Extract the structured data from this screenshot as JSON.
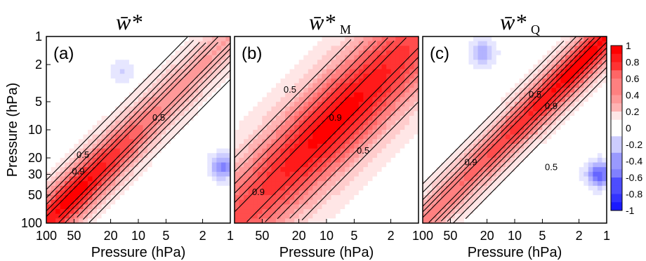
{
  "chart_data": [
    {
      "type": "heatmap",
      "panel_label": "(a)",
      "title": "w̄*",
      "title_sub": "",
      "xlabel": "Pressure (hPa)",
      "ylabel": "Pressure (hPa)",
      "x_ticks": [
        "100",
        "50",
        "20",
        "10",
        "5",
        "2",
        "1"
      ],
      "x_tick_values": [
        100,
        50,
        20,
        10,
        5,
        2,
        1
      ],
      "y_ticks": [
        "1",
        "2",
        "5",
        "10",
        "20",
        "30",
        "50",
        "100"
      ],
      "y_tick_values": [
        1,
        2,
        5,
        10,
        20,
        30,
        50,
        100
      ],
      "xlim": [
        100,
        1
      ],
      "ylim": [
        1,
        100
      ],
      "log_axes": true,
      "peak_center": [
        50,
        50
      ],
      "peak_value": 1.0,
      "contour_labels": [
        {
          "text": "0.5",
          "x": 40,
          "y": 20
        },
        {
          "text": "0.9",
          "x": 45,
          "y": 30
        },
        {
          "text": "0.5",
          "x": 6,
          "y": 8
        }
      ],
      "negative_regions": [
        {
          "x": 15,
          "y": 2.4,
          "value": -0.1
        },
        {
          "x": 1.2,
          "y": 25,
          "value": -0.3
        }
      ]
    },
    {
      "type": "heatmap",
      "panel_label": "(b)",
      "title": "w̄*",
      "title_sub": "M",
      "xlabel": "Pressure (hPa)",
      "ylabel": "",
      "x_ticks": [
        "50",
        "20",
        "10",
        "5",
        "2"
      ],
      "x_tick_values": [
        50,
        20,
        10,
        5,
        2
      ],
      "xlim": [
        100,
        1
      ],
      "ylim": [
        1,
        100
      ],
      "log_axes": true,
      "peak_center": [
        8,
        8
      ],
      "peak_value": 1.0,
      "contour_labels": [
        {
          "text": "0.5",
          "x": 25,
          "y": 4
        },
        {
          "text": "0.9",
          "x": 8,
          "y": 8
        },
        {
          "text": "0.5",
          "x": 4,
          "y": 18
        },
        {
          "text": "0.9",
          "x": 55,
          "y": 50
        }
      ],
      "negative_regions": []
    },
    {
      "type": "heatmap",
      "panel_label": "(c)",
      "title": "w̄*",
      "title_sub": "Q",
      "xlabel": "Pressure (hPa)",
      "ylabel": "",
      "x_ticks": [
        "100",
        "50",
        "20",
        "10",
        "5",
        "2",
        "1"
      ],
      "x_tick_values": [
        100,
        50,
        20,
        10,
        5,
        2,
        1
      ],
      "xlim": [
        100,
        1
      ],
      "ylim": [
        1,
        100
      ],
      "log_axes": true,
      "peak_center": [
        2,
        2
      ],
      "peak_value": 1.0,
      "contour_labels": [
        {
          "text": "0.5",
          "x": 6,
          "y": 4.5
        },
        {
          "text": "0.9",
          "x": 4,
          "y": 6
        },
        {
          "text": "0.9",
          "x": 30,
          "y": 24
        },
        {
          "text": "0.5",
          "x": 4,
          "y": 27
        }
      ],
      "negative_regions": [
        {
          "x": 22,
          "y": 1.5,
          "value": -0.2
        },
        {
          "x": 1.2,
          "y": 30,
          "value": -0.4
        }
      ]
    }
  ],
  "colorbar": {
    "ticks": [
      "1",
      "0.8",
      "0.6",
      "0.4",
      "0.2",
      "0",
      "-0.2",
      "-0.4",
      "-0.6",
      "-0.8",
      "-1"
    ],
    "tick_values": [
      1,
      0.8,
      0.6,
      0.4,
      0.2,
      0,
      -0.2,
      -0.4,
      -0.6,
      -0.8,
      -1
    ],
    "range": [
      -1,
      1
    ],
    "positive_color": "#ff0000",
    "negative_color": "#0000ff",
    "zero_color": "#ffffff"
  }
}
